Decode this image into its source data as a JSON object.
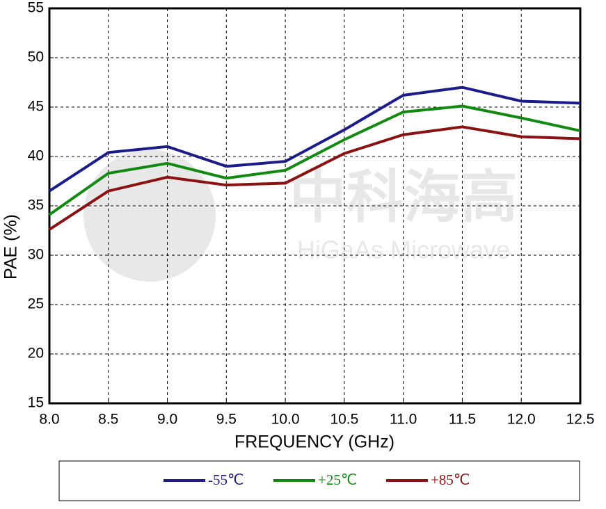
{
  "chart_data": {
    "type": "line",
    "xlabel": "FREQUENCY (GHz)",
    "ylabel": "PAE (%)",
    "watermark": [
      "中科海高",
      "HiGaAs Microwave"
    ],
    "x": [
      8,
      8.5,
      9,
      9.5,
      10,
      10.5,
      11,
      11.5,
      12,
      12.5
    ],
    "series": [
      {
        "name": "-55℃",
        "color": "#1b1b8a",
        "values": [
          36.5,
          40.4,
          41.0,
          39.0,
          39.5,
          42.7,
          46.2,
          47.0,
          45.6,
          45.4
        ]
      },
      {
        "name": "+25℃",
        "color": "#128a12",
        "values": [
          34.1,
          38.3,
          39.3,
          37.8,
          38.6,
          41.7,
          44.5,
          45.1,
          43.9,
          42.6
        ]
      },
      {
        "name": "+85℃",
        "color": "#8a1212",
        "values": [
          32.6,
          36.5,
          37.9,
          37.1,
          37.3,
          40.3,
          42.2,
          43.0,
          42.0,
          41.8
        ]
      }
    ],
    "xlim": [
      8,
      12.5
    ],
    "xticks": [
      {
        "value": 8,
        "label": "8.0"
      },
      8.5,
      {
        "value": 9,
        "label": "9.0"
      },
      9.5,
      {
        "value": 10,
        "label": "10.0"
      },
      10.5,
      {
        "value": 11,
        "label": "11.0"
      },
      11.5,
      {
        "value": 12,
        "label": "12.0"
      },
      12.5
    ],
    "ylim": [
      15,
      55
    ],
    "yticks": [
      15,
      20,
      25,
      30,
      35,
      40,
      45,
      50,
      55
    ],
    "grid": true,
    "legend": "bottom"
  }
}
